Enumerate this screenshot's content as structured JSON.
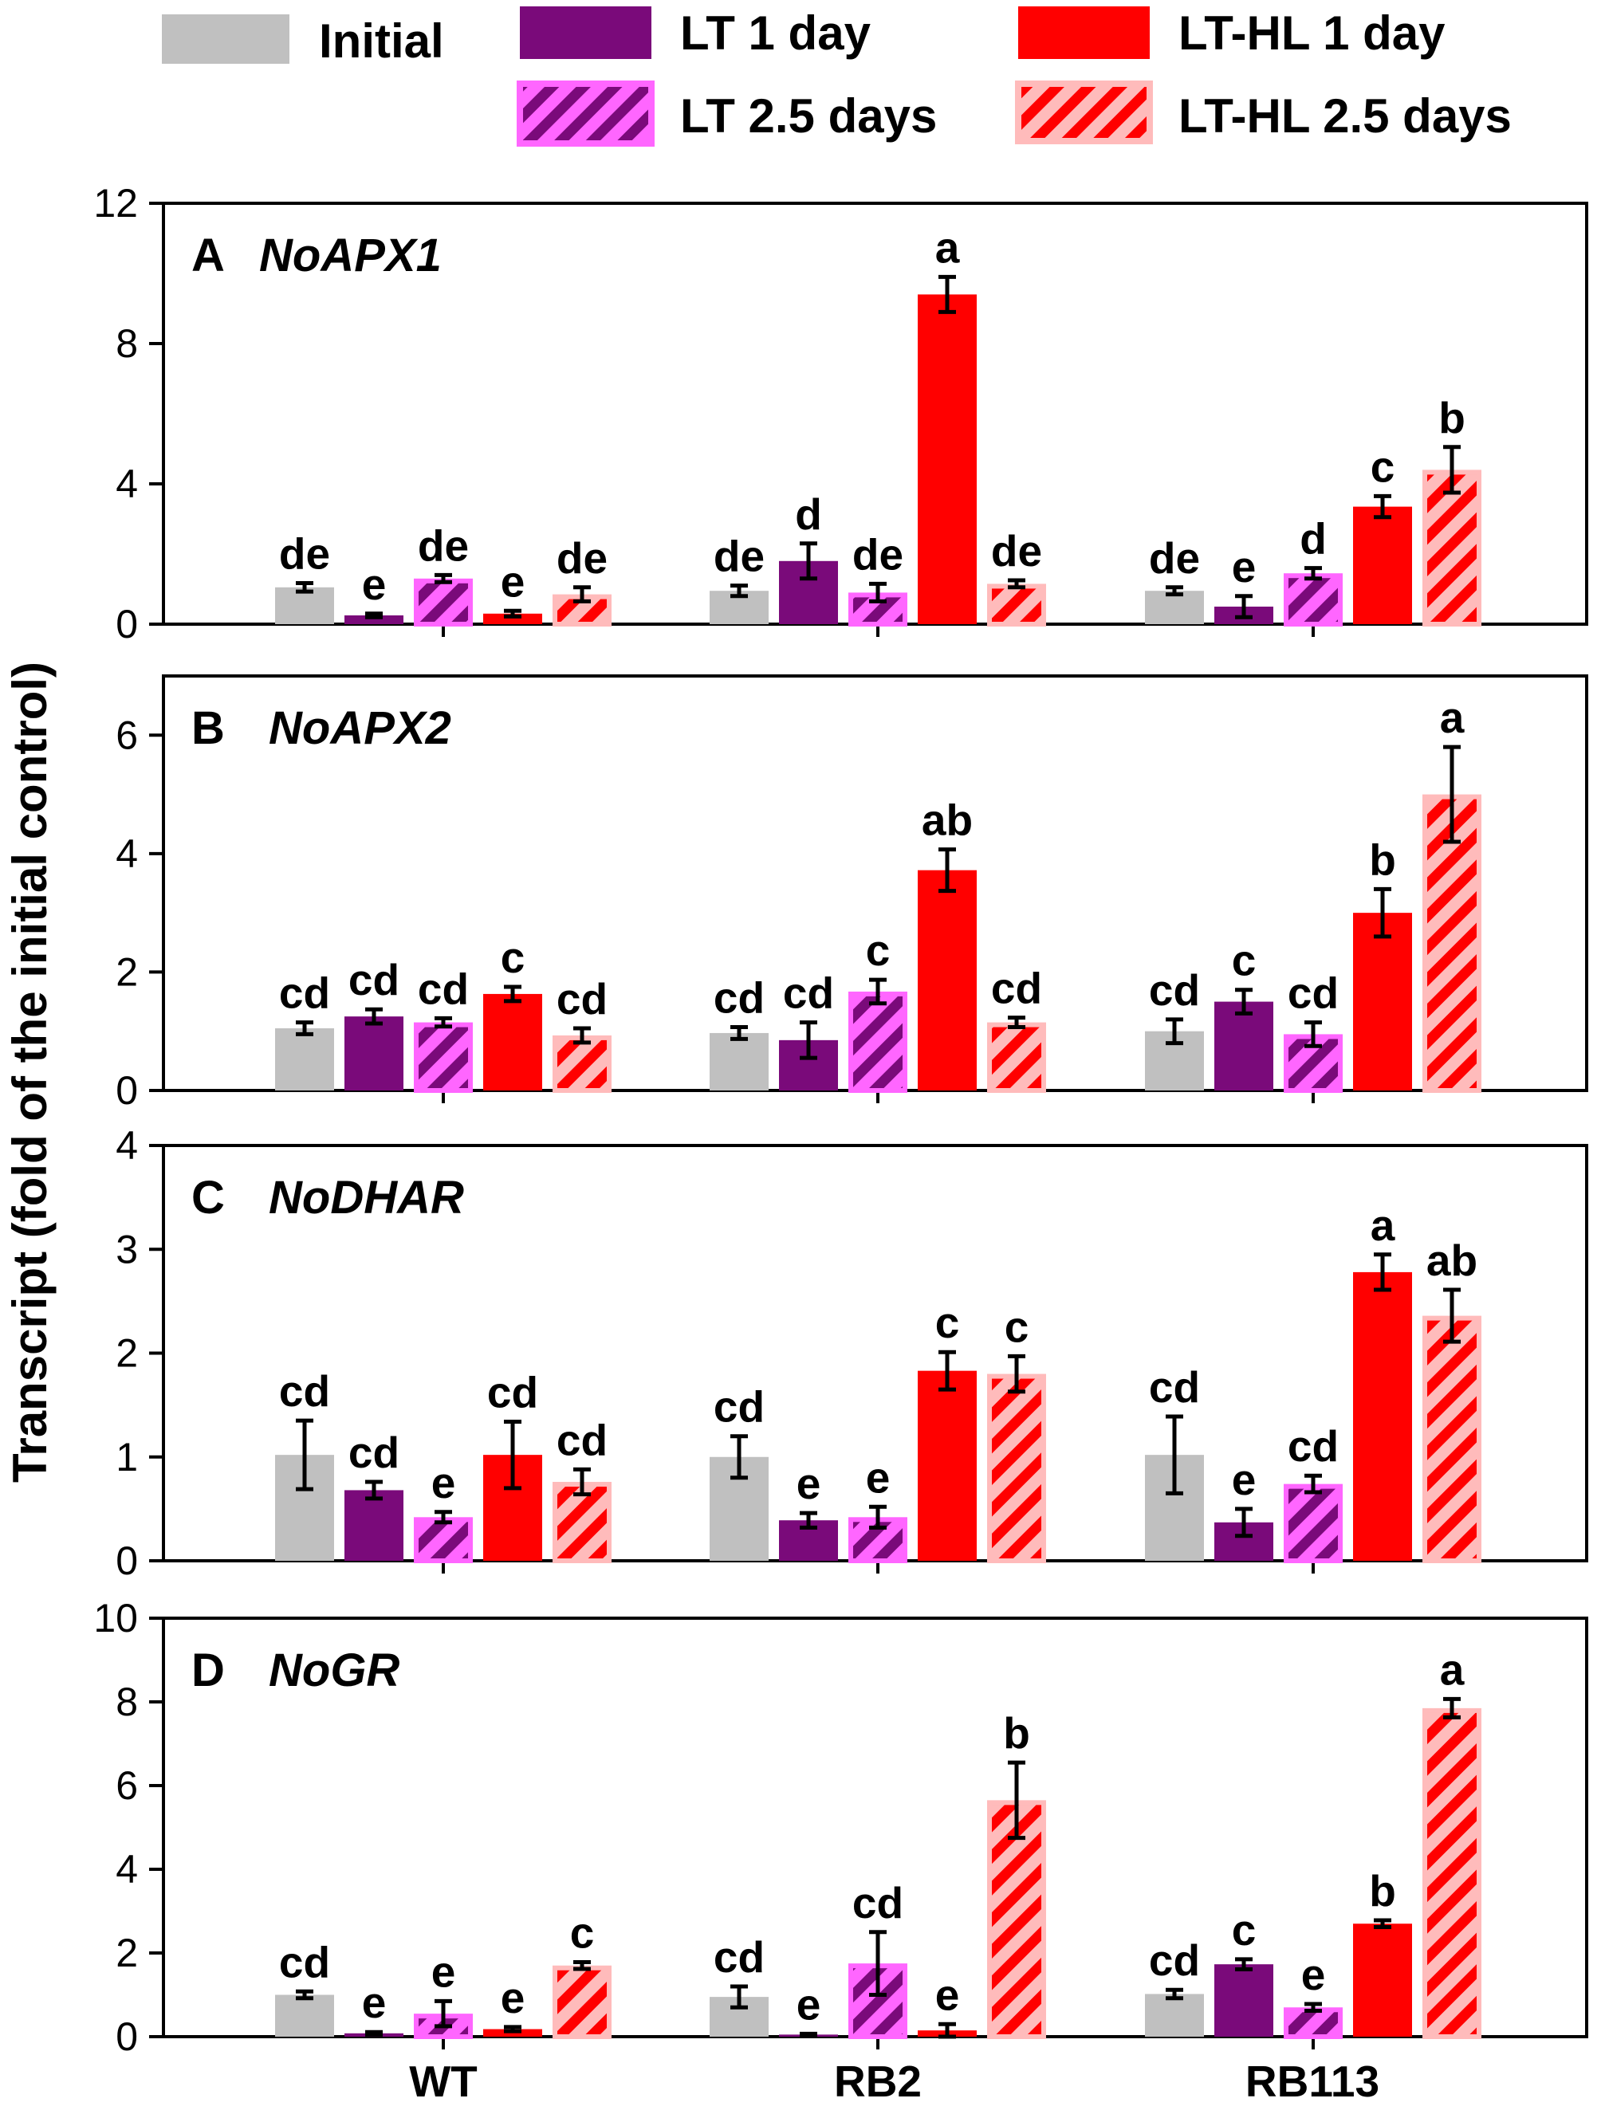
{
  "chart_data": {
    "type": "bar",
    "ylabel": "Transcript (fold of the initial control)",
    "categories": [
      "WT",
      "RB2",
      "RB113"
    ],
    "legend": {
      "placement": "top",
      "entries": [
        {
          "name": "Initial",
          "fill": "#c0c0c0",
          "hatched": false
        },
        {
          "name": "LT 1 day",
          "fill": "#7a0a7a",
          "hatched": false
        },
        {
          "name": "LT-HL 1 day",
          "fill": "#ff0000",
          "hatched": false
        },
        {
          "name": "LT 2.5 days",
          "fill": "#ff66ff",
          "hatched": true,
          "hatch_color": "#7a0a7a"
        },
        {
          "name": "LT-HL 2.5 days",
          "fill": "#ffbbbb",
          "hatched": true,
          "hatch_color": "#ff0000"
        }
      ]
    },
    "series_order": [
      "Initial",
      "LT 1 day",
      "LT 2.5 days",
      "LT-HL 1 day",
      "LT-HL 2.5 days"
    ],
    "panels": [
      {
        "letter": "A",
        "gene": "NoAPX1",
        "ylim": [
          0,
          12
        ],
        "yticks": [
          0,
          4,
          8,
          12
        ],
        "values": [
          [
            1.05,
            0.25,
            1.3,
            0.3,
            0.85
          ],
          [
            0.95,
            1.8,
            0.9,
            9.4,
            1.15
          ],
          [
            0.95,
            0.5,
            1.45,
            3.35,
            4.4
          ]
        ],
        "errors": [
          [
            0.12,
            0.05,
            0.1,
            0.08,
            0.2
          ],
          [
            0.15,
            0.5,
            0.25,
            0.5,
            0.1
          ],
          [
            0.1,
            0.3,
            0.15,
            0.3,
            0.65
          ]
        ],
        "labels": [
          [
            "de",
            "e",
            "de",
            "e",
            "de"
          ],
          [
            "de",
            "d",
            "de",
            "a",
            "de"
          ],
          [
            "de",
            "e",
            "d",
            "c",
            "b"
          ]
        ]
      },
      {
        "letter": "B",
        "gene": "NoAPX2",
        "ylim": [
          0,
          7
        ],
        "yticks": [
          0,
          2,
          4,
          6
        ],
        "values": [
          [
            1.05,
            1.25,
            1.15,
            1.63,
            0.93
          ],
          [
            0.97,
            0.85,
            1.67,
            3.72,
            1.15
          ],
          [
            1.0,
            1.5,
            0.95,
            3.0,
            5.0
          ]
        ],
        "errors": [
          [
            0.1,
            0.12,
            0.07,
            0.12,
            0.12
          ],
          [
            0.1,
            0.3,
            0.2,
            0.35,
            0.08
          ],
          [
            0.2,
            0.2,
            0.2,
            0.4,
            0.8
          ]
        ],
        "labels": [
          [
            "cd",
            "cd",
            "cd",
            "c",
            "cd"
          ],
          [
            "cd",
            "cd",
            "c",
            "ab",
            "cd"
          ],
          [
            "cd",
            "c",
            "cd",
            "b",
            "a"
          ]
        ]
      },
      {
        "letter": "C",
        "gene": "NoDHAR",
        "ylim": [
          0,
          4
        ],
        "yticks": [
          0,
          1,
          2,
          3,
          4
        ],
        "values": [
          [
            1.02,
            0.68,
            0.42,
            1.02,
            0.76
          ],
          [
            1.0,
            0.39,
            0.42,
            1.83,
            1.8
          ],
          [
            1.02,
            0.37,
            0.74,
            2.78,
            2.36
          ]
        ],
        "errors": [
          [
            0.33,
            0.08,
            0.05,
            0.32,
            0.12
          ],
          [
            0.2,
            0.07,
            0.1,
            0.18,
            0.17
          ],
          [
            0.37,
            0.13,
            0.08,
            0.17,
            0.25
          ]
        ],
        "labels": [
          [
            "cd",
            "cd",
            "e",
            "cd",
            "cd"
          ],
          [
            "cd",
            "e",
            "e",
            "c",
            "c"
          ],
          [
            "cd",
            "e",
            "cd",
            "a",
            "ab"
          ]
        ]
      },
      {
        "letter": "D",
        "gene": "NoGR",
        "ylim": [
          0,
          10
        ],
        "yticks": [
          0,
          2,
          4,
          6,
          8,
          10
        ],
        "values": [
          [
            1.0,
            0.08,
            0.55,
            0.18,
            1.7
          ],
          [
            0.95,
            0.05,
            1.75,
            0.15,
            5.65
          ],
          [
            1.02,
            1.73,
            0.7,
            2.7,
            7.85
          ]
        ],
        "errors": [
          [
            0.08,
            0.03,
            0.3,
            0.05,
            0.08
          ],
          [
            0.25,
            0.02,
            0.75,
            0.15,
            0.9
          ],
          [
            0.1,
            0.12,
            0.08,
            0.08,
            0.22
          ]
        ],
        "labels": [
          [
            "cd",
            "e",
            "e",
            "e",
            "c"
          ],
          [
            "cd",
            "e",
            "cd",
            "e",
            "b"
          ],
          [
            "cd",
            "c",
            "e",
            "b",
            "a"
          ]
        ]
      }
    ]
  }
}
